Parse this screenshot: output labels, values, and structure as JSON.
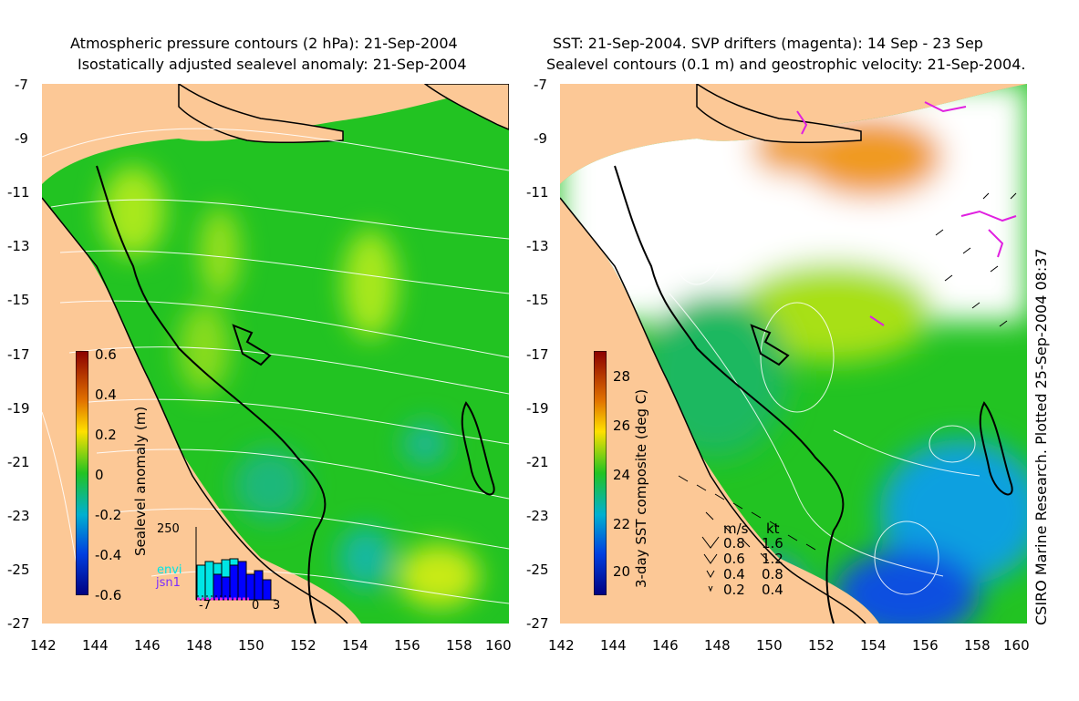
{
  "left_panel": {
    "title_line1": "Atmospheric pressure contours (2 hPa): 21-Sep-2004",
    "title_line2": "Isostatically adjusted sealevel anomaly: 21-Sep-2004",
    "colorbar": {
      "label": "Sealevel anomaly (m)",
      "ticks": [
        "0.6",
        "0.4",
        "0.2",
        "0",
        "-0.2",
        "-0.4",
        "-0.6"
      ],
      "range": [
        -0.6,
        0.6
      ]
    },
    "inset": {
      "ymax_label": "250",
      "x_labels": [
        "-7",
        "0",
        "3"
      ],
      "legend": [
        {
          "name": "envi",
          "color": "#00e5e5"
        },
        {
          "name": "jsn1",
          "color": "#7b2cff"
        }
      ]
    }
  },
  "right_panel": {
    "title_line1": "SST: 21-Sep-2004. SVP drifters (magenta): 14 Sep - 23 Sep",
    "title_line2": "Sealevel contours (0.1 m) and geostrophic velocity: 21-Sep-2004.",
    "colorbar": {
      "label": "3-day SST composite (deg C)",
      "ticks": [
        "28",
        "26",
        "24",
        "22",
        "20"
      ],
      "range": [
        19,
        29
      ]
    },
    "velocity_key": {
      "header_ms": "m/s",
      "header_kt": "kt",
      "rows": [
        {
          "ms": "0.8",
          "kt": "1.6"
        },
        {
          "ms": "0.6",
          "kt": "1.2"
        },
        {
          "ms": "0.4",
          "kt": "0.8"
        },
        {
          "ms": "0.2",
          "kt": "0.4"
        }
      ]
    }
  },
  "axes": {
    "y_labels": [
      "-7",
      "-9",
      "-11",
      "-13",
      "-15",
      "-17",
      "-19",
      "-21",
      "-23",
      "-25",
      "-27"
    ],
    "x_labels": [
      "142",
      "144",
      "146",
      "148",
      "150",
      "152",
      "154",
      "156",
      "158",
      "160"
    ]
  },
  "credit": "CSIRO Marine Research. Plotted 25-Sep-2004 08:37",
  "colors": {
    "land": "#fcc896",
    "sea_base": "#22c322",
    "drifter": "#e020e0"
  }
}
